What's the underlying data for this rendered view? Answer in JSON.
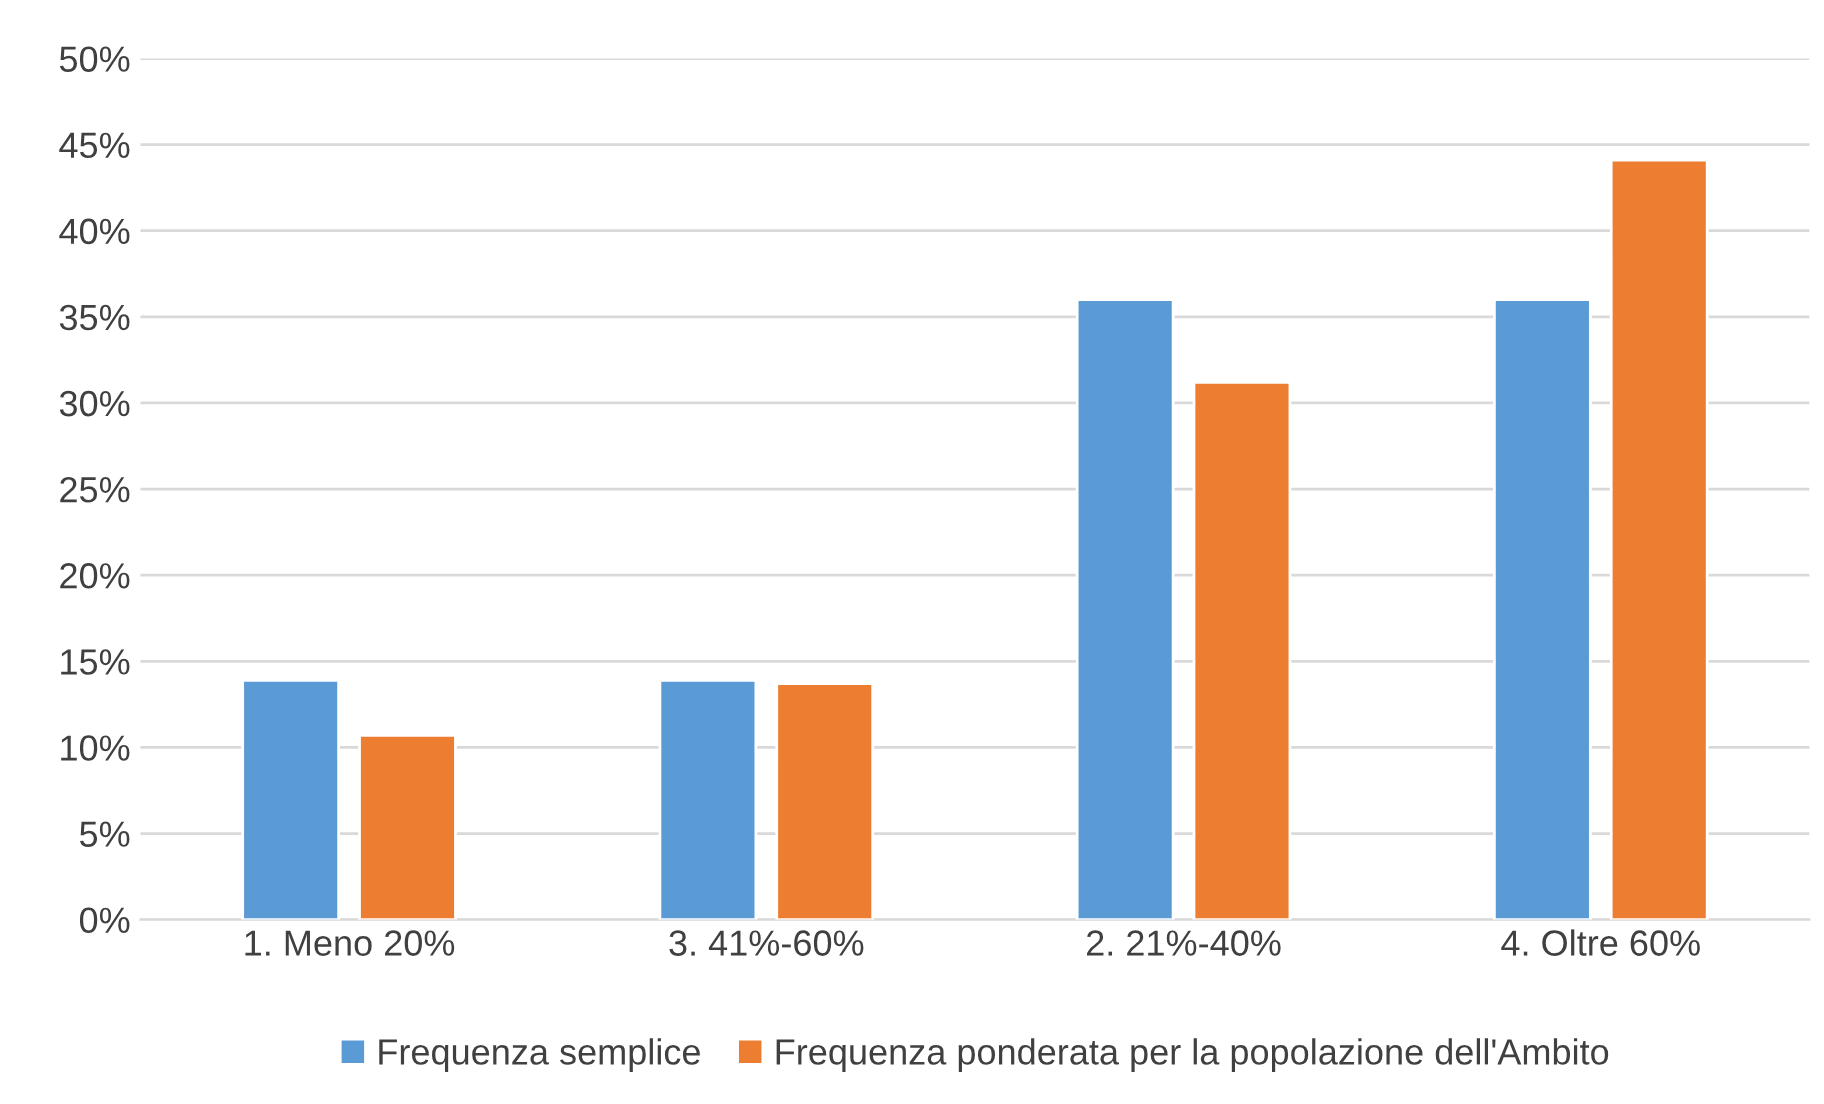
{
  "chart_data": {
    "type": "bar",
    "categories": [
      "1. Meno 20%",
      "3. 41%-60%",
      "2. 21%-40%",
      "4. Oltre 60%"
    ],
    "series": [
      {
        "name": "Frequenza semplice",
        "color": "#5b9bd5",
        "values": [
          13.9,
          13.9,
          36.0,
          36.0
        ]
      },
      {
        "name": "Frequenza ponderata per la popolazione dell'Ambito",
        "color": "#ed7d31",
        "values": [
          10.7,
          13.7,
          31.2,
          44.1
        ]
      }
    ],
    "ylim": [
      0,
      50
    ],
    "yticks": [
      {
        "value": 0,
        "label": "0%"
      },
      {
        "value": 5,
        "label": "5%"
      },
      {
        "value": 10,
        "label": "10%"
      },
      {
        "value": 15,
        "label": "15%"
      },
      {
        "value": 20,
        "label": "20%"
      },
      {
        "value": 25,
        "label": "25%"
      },
      {
        "value": 30,
        "label": "30%"
      },
      {
        "value": 35,
        "label": "35%"
      },
      {
        "value": 40,
        "label": "40%"
      },
      {
        "value": 45,
        "label": "45%"
      },
      {
        "value": 50,
        "label": "50%"
      }
    ],
    "grid": "y",
    "legend": "bottom"
  }
}
